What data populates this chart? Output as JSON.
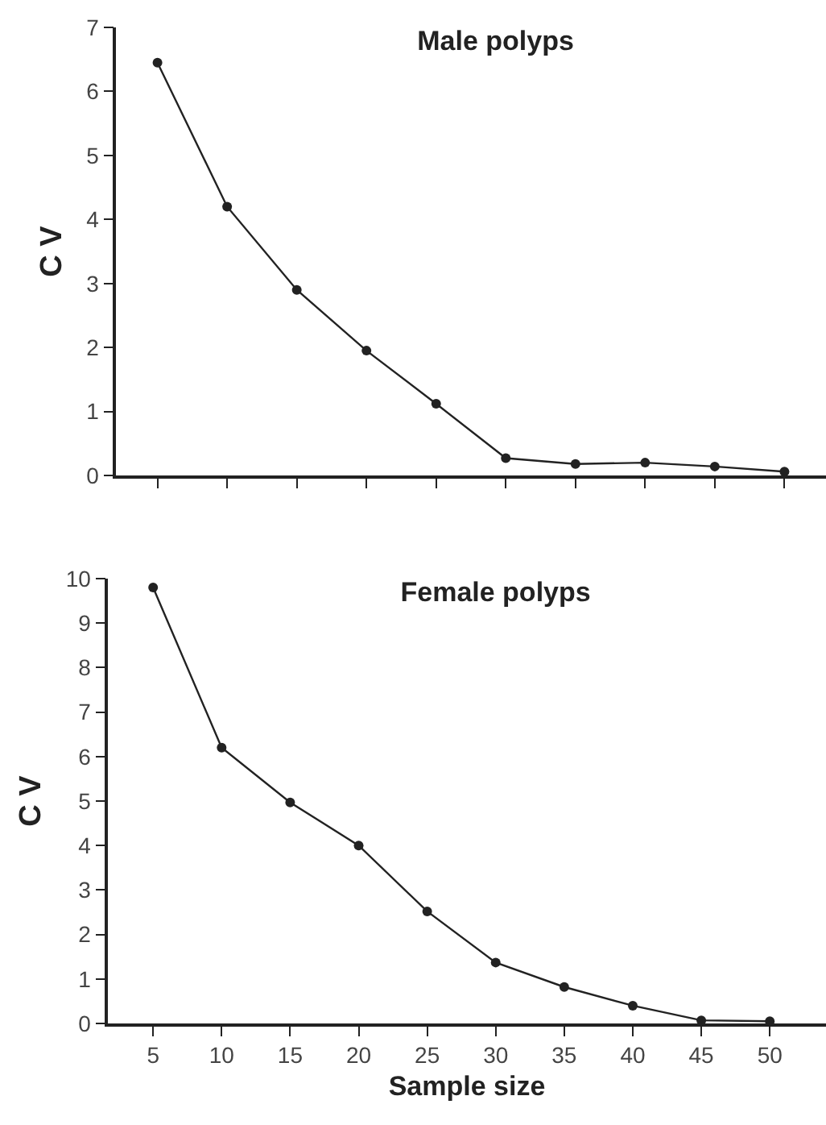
{
  "chart_data": [
    {
      "type": "line",
      "title": "Male polyps",
      "ylabel": "C V",
      "categories": [
        null,
        null,
        null,
        null,
        null,
        null,
        null,
        null,
        null,
        null
      ],
      "values": [
        6.45,
        4.2,
        2.9,
        1.95,
        1.12,
        0.27,
        0.18,
        0.2,
        0.14,
        0.06
      ],
      "color": "#222222",
      "ylim": [
        0,
        7
      ],
      "yticks": [
        0,
        1,
        2,
        3,
        4,
        5,
        6,
        7
      ],
      "tick_labels": "y",
      "grid": false,
      "marker": "circle",
      "line_style": "solid"
    },
    {
      "type": "line",
      "title": "Female polyps",
      "xlabel": "Sample size",
      "ylabel": "C V",
      "x": [
        5,
        10,
        15,
        20,
        25,
        30,
        35,
        40,
        45,
        50
      ],
      "values": [
        9.8,
        6.2,
        4.97,
        4.0,
        2.52,
        1.37,
        0.82,
        0.4,
        0.07,
        0.05
      ],
      "color": "#222222",
      "xlim": [
        1.7,
        54.1
      ],
      "xticks": [
        5,
        10,
        15,
        20,
        25,
        30,
        35,
        40,
        45,
        50
      ],
      "ylim": [
        0,
        10
      ],
      "yticks": [
        0,
        1,
        2,
        3,
        4,
        5,
        6,
        7,
        8,
        9,
        10
      ],
      "grid": false,
      "marker": "circle",
      "line_style": "solid"
    }
  ]
}
